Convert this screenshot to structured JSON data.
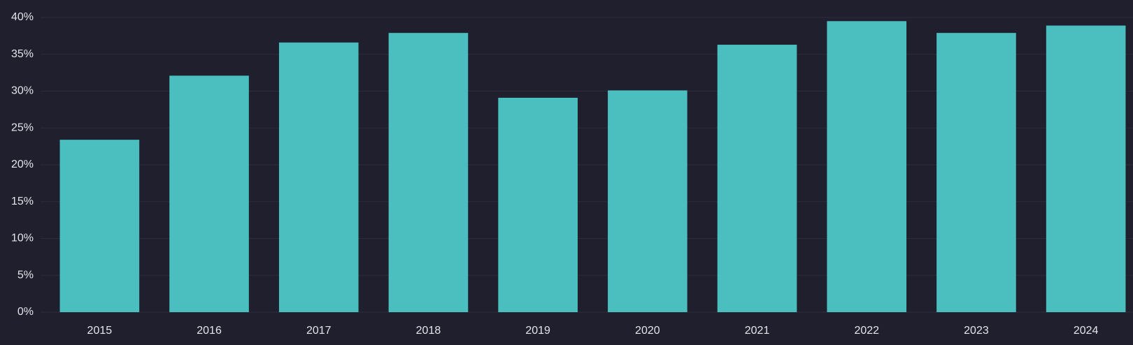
{
  "chart_data": {
    "type": "bar",
    "categories": [
      "2015",
      "2016",
      "2017",
      "2018",
      "2019",
      "2020",
      "2021",
      "2022",
      "2023",
      "2024"
    ],
    "values": [
      23.4,
      32.1,
      36.6,
      37.9,
      29.1,
      30.1,
      36.3,
      39.5,
      37.9,
      38.9
    ],
    "color": "#4bbfbf",
    "ylim": [
      0,
      40
    ],
    "yticks": [
      {
        "value": 0,
        "label": "0%"
      },
      {
        "value": 5,
        "label": "5%"
      },
      {
        "value": 10,
        "label": "10%"
      },
      {
        "value": 15,
        "label": "15%"
      },
      {
        "value": 20,
        "label": "20%"
      },
      {
        "value": 25,
        "label": "25%"
      },
      {
        "value": 30,
        "label": "30%"
      },
      {
        "value": 35,
        "label": "35%"
      },
      {
        "value": 40,
        "label": "40%"
      }
    ],
    "grid": true
  }
}
